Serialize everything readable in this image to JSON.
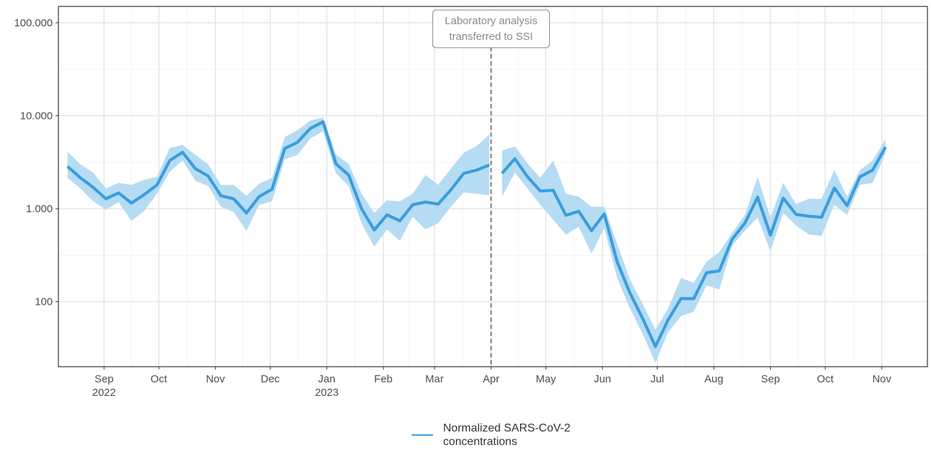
{
  "chart_data": {
    "type": "line",
    "y_scale": "log",
    "ylim": [
      20,
      150000
    ],
    "grid": true,
    "legend_placement": "bottom",
    "colors": {
      "line": "#3b9ddd",
      "band": "#b5dcf3",
      "annotation": "#8a8a8a"
    },
    "x_range": [
      "2022-08-07",
      "2023-11-26"
    ],
    "y_ticks": [
      {
        "value": 100000,
        "label": "100.000"
      },
      {
        "value": 10000,
        "label": "10.000"
      },
      {
        "value": 1000,
        "label": "1.000"
      },
      {
        "value": 100,
        "label": "100"
      }
    ],
    "x_ticks": [
      {
        "date": "2022-09-01",
        "label": "Sep",
        "sublabel": "2022"
      },
      {
        "date": "2022-10-01",
        "label": "Oct",
        "sublabel": ""
      },
      {
        "date": "2022-11-01",
        "label": "Nov",
        "sublabel": ""
      },
      {
        "date": "2022-12-01",
        "label": "Dec",
        "sublabel": ""
      },
      {
        "date": "2023-01-01",
        "label": "Jan",
        "sublabel": "2023"
      },
      {
        "date": "2023-02-01",
        "label": "Feb",
        "sublabel": ""
      },
      {
        "date": "2023-03-01",
        "label": "Mar",
        "sublabel": ""
      },
      {
        "date": "2023-04-01",
        "label": "Apr",
        "sublabel": ""
      },
      {
        "date": "2023-05-01",
        "label": "May",
        "sublabel": ""
      },
      {
        "date": "2023-06-01",
        "label": "Jun",
        "sublabel": ""
      },
      {
        "date": "2023-07-01",
        "label": "Jul",
        "sublabel": ""
      },
      {
        "date": "2023-08-01",
        "label": "Aug",
        "sublabel": ""
      },
      {
        "date": "2023-09-01",
        "label": "Sep",
        "sublabel": ""
      },
      {
        "date": "2023-10-01",
        "label": "Oct",
        "sublabel": ""
      },
      {
        "date": "2023-11-01",
        "label": "Nov",
        "sublabel": ""
      }
    ],
    "annotation": {
      "date": "2023-04-01",
      "lines": [
        "Laboratory analysis",
        "transferred to SSI"
      ]
    },
    "series": [
      {
        "name": "Normalized SARS-CoV-2 concentrations",
        "segments": [
          [
            {
              "x": "2022-08-12",
              "y": 2850,
              "lo": 2150,
              "hi": 4100
            },
            {
              "x": "2022-08-19",
              "y": 2150,
              "lo": 1650,
              "hi": 3000
            },
            {
              "x": "2022-08-26",
              "y": 1700,
              "lo": 1200,
              "hi": 2450
            },
            {
              "x": "2022-09-02",
              "y": 1280,
              "lo": 980,
              "hi": 1650
            },
            {
              "x": "2022-09-09",
              "y": 1480,
              "lo": 1180,
              "hi": 1900
            },
            {
              "x": "2022-09-16",
              "y": 1150,
              "lo": 740,
              "hi": 1800
            },
            {
              "x": "2022-09-23",
              "y": 1420,
              "lo": 950,
              "hi": 2050
            },
            {
              "x": "2022-09-30",
              "y": 1800,
              "lo": 1450,
              "hi": 2200
            },
            {
              "x": "2022-10-07",
              "y": 3300,
              "lo": 2500,
              "hi": 4500
            },
            {
              "x": "2022-10-14",
              "y": 4050,
              "lo": 3300,
              "hi": 4850
            },
            {
              "x": "2022-10-21",
              "y": 2700,
              "lo": 2000,
              "hi": 3800
            },
            {
              "x": "2022-10-28",
              "y": 2250,
              "lo": 1750,
              "hi": 3000
            },
            {
              "x": "2022-11-04",
              "y": 1380,
              "lo": 1050,
              "hi": 1800
            },
            {
              "x": "2022-11-11",
              "y": 1280,
              "lo": 920,
              "hi": 1800
            },
            {
              "x": "2022-11-18",
              "y": 900,
              "lo": 580,
              "hi": 1380
            },
            {
              "x": "2022-11-25",
              "y": 1350,
              "lo": 1100,
              "hi": 1850
            },
            {
              "x": "2022-12-02",
              "y": 1620,
              "lo": 1200,
              "hi": 2150
            },
            {
              "x": "2022-12-09",
              "y": 4450,
              "lo": 3400,
              "hi": 5900
            },
            {
              "x": "2022-12-16",
              "y": 5200,
              "lo": 3800,
              "hi": 7000
            },
            {
              "x": "2022-12-23",
              "y": 7300,
              "lo": 5700,
              "hi": 8900
            },
            {
              "x": "2022-12-30",
              "y": 8600,
              "lo": 6800,
              "hi": 9600
            },
            {
              "x": "2023-01-06",
              "y": 3050,
              "lo": 2400,
              "hi": 3800
            },
            {
              "x": "2023-01-13",
              "y": 2300,
              "lo": 1750,
              "hi": 3050
            },
            {
              "x": "2023-01-20",
              "y": 1000,
              "lo": 700,
              "hi": 1450
            },
            {
              "x": "2023-01-27",
              "y": 590,
              "lo": 390,
              "hi": 900
            },
            {
              "x": "2023-02-03",
              "y": 860,
              "lo": 600,
              "hi": 1230
            },
            {
              "x": "2023-02-10",
              "y": 740,
              "lo": 450,
              "hi": 1200
            },
            {
              "x": "2023-02-17",
              "y": 1100,
              "lo": 820,
              "hi": 1450
            },
            {
              "x": "2023-02-24",
              "y": 1180,
              "lo": 600,
              "hi": 2300
            },
            {
              "x": "2023-03-03",
              "y": 1120,
              "lo": 700,
              "hi": 1800
            },
            {
              "x": "2023-03-10",
              "y": 1600,
              "lo": 1050,
              "hi": 2700
            },
            {
              "x": "2023-03-17",
              "y": 2400,
              "lo": 1500,
              "hi": 4000
            },
            {
              "x": "2023-03-24",
              "y": 2600,
              "lo": 1450,
              "hi": 4700
            },
            {
              "x": "2023-03-31",
              "y": 2950,
              "lo": 1400,
              "hi": 6300
            }
          ],
          [
            {
              "x": "2023-04-07",
              "y": 2400,
              "lo": 1350,
              "hi": 4200
            },
            {
              "x": "2023-04-14",
              "y": 3450,
              "lo": 2450,
              "hi": 4700
            },
            {
              "x": "2023-04-21",
              "y": 2200,
              "lo": 1650,
              "hi": 3050
            },
            {
              "x": "2023-04-28",
              "y": 1550,
              "lo": 1100,
              "hi": 2150
            },
            {
              "x": "2023-05-05",
              "y": 1580,
              "lo": 760,
              "hi": 3300
            },
            {
              "x": "2023-05-12",
              "y": 850,
              "lo": 530,
              "hi": 1450
            },
            {
              "x": "2023-05-19",
              "y": 940,
              "lo": 640,
              "hi": 1350
            },
            {
              "x": "2023-05-26",
              "y": 580,
              "lo": 330,
              "hi": 1050
            },
            {
              "x": "2023-06-02",
              "y": 880,
              "lo": 620,
              "hi": 1050
            },
            {
              "x": "2023-06-09",
              "y": 270,
              "lo": 180,
              "hi": 420
            },
            {
              "x": "2023-06-16",
              "y": 125,
              "lo": 85,
              "hi": 175
            },
            {
              "x": "2023-06-23",
              "y": 66,
              "lo": 45,
              "hi": 95
            },
            {
              "x": "2023-06-30",
              "y": 33,
              "lo": 22,
              "hi": 50
            },
            {
              "x": "2023-07-07",
              "y": 64,
              "lo": 47,
              "hi": 85
            },
            {
              "x": "2023-07-14",
              "y": 108,
              "lo": 70,
              "hi": 180
            },
            {
              "x": "2023-07-21",
              "y": 108,
              "lo": 78,
              "hi": 160
            },
            {
              "x": "2023-07-28",
              "y": 205,
              "lo": 150,
              "hi": 270
            },
            {
              "x": "2023-08-04",
              "y": 215,
              "lo": 135,
              "hi": 340
            },
            {
              "x": "2023-08-11",
              "y": 470,
              "lo": 400,
              "hi": 550
            },
            {
              "x": "2023-08-18",
              "y": 700,
              "lo": 580,
              "hi": 850
            },
            {
              "x": "2023-08-25",
              "y": 1330,
              "lo": 800,
              "hi": 2200
            },
            {
              "x": "2023-09-01",
              "y": 520,
              "lo": 350,
              "hi": 800
            },
            {
              "x": "2023-09-08",
              "y": 1300,
              "lo": 900,
              "hi": 1900
            },
            {
              "x": "2023-09-15",
              "y": 870,
              "lo": 660,
              "hi": 1120
            },
            {
              "x": "2023-09-22",
              "y": 830,
              "lo": 530,
              "hi": 1280
            },
            {
              "x": "2023-09-29",
              "y": 810,
              "lo": 510,
              "hi": 1280
            },
            {
              "x": "2023-10-06",
              "y": 1670,
              "lo": 1100,
              "hi": 2600
            },
            {
              "x": "2023-10-13",
              "y": 1080,
              "lo": 860,
              "hi": 1350
            },
            {
              "x": "2023-10-20",
              "y": 2200,
              "lo": 1800,
              "hi": 2600
            },
            {
              "x": "2023-10-27",
              "y": 2600,
              "lo": 1900,
              "hi": 3300
            },
            {
              "x": "2023-11-03",
              "y": 4600,
              "lo": 3900,
              "hi": 5600
            }
          ]
        ]
      }
    ]
  }
}
